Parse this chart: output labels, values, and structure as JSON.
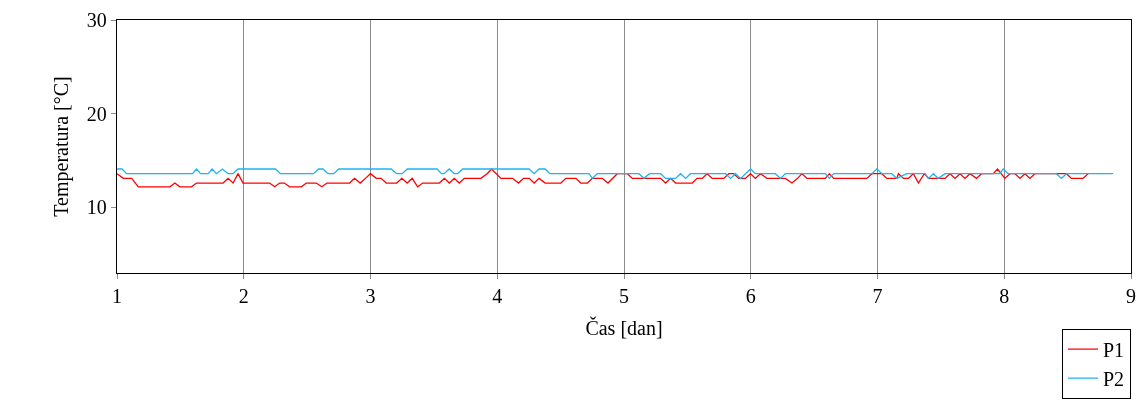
{
  "chart_data": {
    "type": "line",
    "xlabel": "Čas [dan]",
    "ylabel": "Temperatura [°C]",
    "xlim": [
      1,
      9
    ],
    "ylim": [
      3,
      30
    ],
    "xticks": [
      1,
      2,
      3,
      4,
      5,
      6,
      7,
      8,
      9
    ],
    "yticks": [
      10,
      20,
      30
    ],
    "grid": "x",
    "legend": "bottom right",
    "line_style": "solid",
    "marker": "none",
    "series": [
      {
        "name": "P1",
        "color": "#ff0000",
        "x": [
          1.0,
          1.05,
          1.116,
          1.168,
          1.417,
          1.457,
          1.496,
          1.588,
          1.627,
          1.837,
          1.876,
          1.916,
          1.955,
          1.994,
          2.204,
          2.244,
          2.283,
          2.32,
          2.362,
          2.454,
          2.494,
          2.572,
          2.617,
          2.656,
          2.835,
          2.874,
          2.919,
          2.96,
          3.0,
          3.045,
          3.084,
          3.124,
          3.207,
          3.247,
          3.289,
          3.329,
          3.372,
          3.412,
          3.543,
          3.583,
          3.622,
          3.661,
          3.7,
          3.74,
          3.871,
          3.92,
          3.955,
          4.029,
          4.121,
          4.168,
          4.207,
          4.252,
          4.291,
          4.33,
          4.378,
          4.502,
          4.541,
          4.62,
          4.659,
          4.711,
          4.75,
          4.828,
          4.874,
          4.947,
          5.026,
          5.066,
          5.289,
          5.328,
          5.368,
          5.408,
          5.538,
          5.577,
          5.617,
          5.656,
          5.695,
          5.787,
          5.827,
          5.866,
          5.906,
          5.958,
          5.998,
          6.037,
          6.076,
          6.128,
          6.273,
          6.325,
          6.37,
          6.404,
          6.444,
          6.588,
          6.62,
          6.654,
          6.916,
          6.956,
          7.034,
          7.073,
          7.152,
          7.165,
          7.205,
          7.244,
          7.283,
          7.323,
          7.37,
          7.402,
          7.533,
          7.572,
          7.612,
          7.651,
          7.69,
          7.73,
          7.781,
          7.821,
          7.913,
          7.947,
          8.005,
          8.045,
          8.084,
          8.123,
          8.163,
          8.202,
          8.242,
          8.491,
          8.53,
          8.622,
          8.661
        ],
        "values": [
          13.6,
          13.1,
          13.1,
          12.2,
          12.2,
          12.6,
          12.2,
          12.2,
          12.6,
          12.6,
          13.1,
          12.6,
          13.6,
          12.6,
          12.6,
          12.2,
          12.6,
          12.6,
          12.2,
          12.2,
          12.6,
          12.6,
          12.2,
          12.6,
          12.6,
          13.1,
          12.6,
          13.1,
          13.6,
          13.1,
          13.1,
          12.6,
          12.6,
          13.1,
          12.6,
          13.1,
          12.2,
          12.6,
          12.6,
          13.1,
          12.6,
          13.1,
          12.6,
          13.1,
          13.1,
          13.6,
          14.1,
          13.1,
          13.1,
          12.6,
          13.1,
          13.1,
          12.6,
          13.1,
          12.6,
          12.6,
          13.1,
          13.1,
          12.6,
          12.6,
          13.1,
          13.1,
          12.6,
          13.6,
          13.6,
          13.1,
          13.1,
          12.6,
          13.1,
          12.6,
          12.6,
          13.1,
          13.1,
          13.6,
          13.1,
          13.1,
          13.6,
          13.6,
          13.1,
          13.1,
          13.6,
          13.1,
          13.6,
          13.1,
          13.1,
          12.6,
          13.1,
          13.6,
          13.1,
          13.1,
          13.6,
          13.1,
          13.1,
          13.6,
          13.6,
          13.1,
          13.1,
          13.6,
          13.1,
          13.1,
          13.6,
          12.6,
          13.6,
          13.1,
          13.1,
          13.6,
          13.1,
          13.6,
          13.1,
          13.6,
          13.1,
          13.6,
          13.6,
          14.1,
          13.1,
          13.6,
          13.6,
          13.1,
          13.6,
          13.1,
          13.6,
          13.6,
          13.1,
          13.1,
          13.6
        ]
      },
      {
        "name": "P2",
        "color": "#1eb4f0",
        "x": [
          1.0,
          1.04,
          1.076,
          1.596,
          1.627,
          1.659,
          1.72,
          1.75,
          1.785,
          1.832,
          1.876,
          1.916,
          1.955,
          2.25,
          2.29,
          2.55,
          2.59,
          2.625,
          2.665,
          2.71,
          2.75,
          3.163,
          3.207,
          3.25,
          3.29,
          3.525,
          3.56,
          3.58,
          3.622,
          3.66,
          3.687,
          3.727,
          4.252,
          4.291,
          4.33,
          4.378,
          4.415,
          4.724,
          4.75,
          4.79,
          5.118,
          5.157,
          5.202,
          5.289,
          5.328,
          5.407,
          5.446,
          5.486,
          5.525,
          5.801,
          5.84,
          5.88,
          5.92,
          5.998,
          6.037,
          6.194,
          6.234,
          6.273,
          6.588,
          6.62,
          6.654,
          6.956,
          6.995,
          7.034,
          7.113,
          7.152,
          7.231,
          7.376,
          7.402,
          7.441,
          7.48,
          7.533,
          7.966,
          7.992,
          8.031,
          8.412,
          8.451,
          8.491,
          8.858
        ],
        "values": [
          14.1,
          14.1,
          13.6,
          13.6,
          14.1,
          13.6,
          13.6,
          14.1,
          13.6,
          14.1,
          13.6,
          13.6,
          14.1,
          14.1,
          13.6,
          13.6,
          14.1,
          14.1,
          13.6,
          13.6,
          14.1,
          14.1,
          13.6,
          13.6,
          14.1,
          14.1,
          13.6,
          13.6,
          14.1,
          13.6,
          13.6,
          14.1,
          14.1,
          13.6,
          14.1,
          14.1,
          13.6,
          13.6,
          13.1,
          13.6,
          13.6,
          13.1,
          13.6,
          13.6,
          13.1,
          13.1,
          13.6,
          13.1,
          13.6,
          13.6,
          13.1,
          13.6,
          13.1,
          14.1,
          13.6,
          13.6,
          13.1,
          13.6,
          13.6,
          13.1,
          13.6,
          13.6,
          14.1,
          13.6,
          13.6,
          13.1,
          13.6,
          13.6,
          13.1,
          13.6,
          13.1,
          13.6,
          13.6,
          14.1,
          13.6,
          13.6,
          13.1,
          13.6,
          13.6
        ]
      }
    ]
  }
}
